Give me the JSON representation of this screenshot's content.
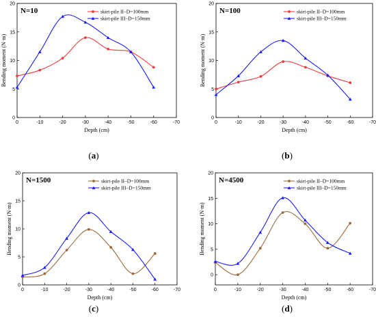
{
  "chart_data": [
    {
      "type": "line",
      "title": "N=10",
      "caption_letter": "a",
      "xlabel": "Depth (cm)",
      "ylabel": "Bending moment (N·m)",
      "xlim": [
        0,
        -70
      ],
      "ylim": [
        0,
        20
      ],
      "xticks": [
        "0",
        "-10",
        "-20",
        "-30",
        "-40",
        "-50",
        "-60",
        "-70"
      ],
      "yticks": [
        "0",
        "5",
        "10",
        "15",
        "20"
      ],
      "grid": false,
      "legend_position": "top-right",
      "colors": [
        "#ef3b3b",
        "#1a1aff"
      ],
      "series": [
        {
          "name": "skirt-pile II–D=100mm",
          "marker": "circle",
          "x": [
            0,
            -10,
            -20,
            -30,
            -40,
            -50,
            -60
          ],
          "values": [
            7.3,
            8.3,
            10.4,
            14.0,
            12.0,
            11.5,
            8.8
          ]
        },
        {
          "name": "skirt-pile III–D=150mm",
          "marker": "triangle",
          "x": [
            0,
            -10,
            -20,
            -30,
            -40,
            -50,
            -60
          ],
          "values": [
            5.3,
            11.5,
            17.7,
            16.7,
            14.0,
            11.5,
            5.3
          ]
        }
      ]
    },
    {
      "type": "line",
      "title": "N=100",
      "caption_letter": "b",
      "xlabel": "Depth (cm)",
      "ylabel": "Bending moment (N·m)",
      "xlim": [
        0,
        -70
      ],
      "ylim": [
        0,
        20
      ],
      "xticks": [
        "0",
        "-10",
        "-20",
        "-30",
        "-40",
        "-50",
        "-60",
        "-70"
      ],
      "yticks": [
        "0",
        "5",
        "10",
        "15",
        "20"
      ],
      "grid": false,
      "legend_position": "top-right",
      "colors": [
        "#ef3b3b",
        "#1a1aff"
      ],
      "series": [
        {
          "name": "skirt-pile II–D=100mm",
          "marker": "circle",
          "x": [
            0,
            -10,
            -20,
            -30,
            -40,
            -50,
            -60
          ],
          "values": [
            5.0,
            6.2,
            7.2,
            9.8,
            8.8,
            7.3,
            6.1
          ]
        },
        {
          "name": "skirt-pile III–D=150mm",
          "marker": "triangle",
          "x": [
            0,
            -10,
            -20,
            -30,
            -40,
            -50,
            -60
          ],
          "values": [
            4.0,
            7.3,
            11.5,
            13.5,
            10.4,
            7.4,
            3.2
          ]
        }
      ]
    },
    {
      "type": "line",
      "title": "N=1500",
      "caption_letter": "c",
      "xlabel": "Depth (cm)",
      "ylabel": "Bending moment (N·m)",
      "xlim": [
        0,
        -70
      ],
      "ylim": [
        0,
        20
      ],
      "xticks": [
        "0",
        "-10",
        "-20",
        "-30",
        "-40",
        "-50",
        "-60",
        "-70"
      ],
      "yticks": [
        "0",
        "5",
        "10",
        "15",
        "20"
      ],
      "grid": false,
      "legend_position": "top-right",
      "colors": [
        "#9c6a3c",
        "#1a1aff"
      ],
      "series": [
        {
          "name": "skirt-pile II–D=100mm",
          "marker": "circle",
          "x": [
            0,
            -10,
            -20,
            -30,
            -40,
            -50,
            -60
          ],
          "values": [
            1.4,
            2.0,
            6.2,
            9.9,
            6.7,
            2.0,
            5.6
          ]
        },
        {
          "name": "skirt-pile III–D=150mm",
          "marker": "triangle",
          "x": [
            0,
            -10,
            -20,
            -30,
            -40,
            -50,
            -60
          ],
          "values": [
            1.7,
            3.1,
            8.3,
            12.9,
            9.5,
            6.3,
            1.0
          ]
        }
      ]
    },
    {
      "type": "line",
      "title": "N=4500",
      "caption_letter": "d",
      "xlabel": "Depth (cm)",
      "ylabel": "Bending moment (N·m)",
      "xlim": [
        0,
        -70
      ],
      "ylim": [
        -2,
        20
      ],
      "xticks": [
        "0",
        "-10",
        "-20",
        "-30",
        "-40",
        "-50",
        "-60",
        "-70"
      ],
      "yticks": [
        "0",
        "5",
        "10",
        "15",
        "20"
      ],
      "grid": false,
      "legend_position": "top-right",
      "colors": [
        "#9c6a3c",
        "#1a1aff"
      ],
      "series": [
        {
          "name": "skirt-pile II–D=100mm",
          "marker": "circle",
          "x": [
            0,
            -10,
            -20,
            -30,
            -40,
            -50,
            -60
          ],
          "values": [
            2.4,
            0.0,
            5.2,
            12.2,
            10.0,
            5.2,
            10.1
          ]
        },
        {
          "name": "skirt-pile III–D=150mm",
          "marker": "triangle",
          "x": [
            0,
            -10,
            -20,
            -30,
            -40,
            -50,
            -60
          ],
          "values": [
            2.6,
            2.2,
            8.3,
            15.1,
            10.7,
            6.3,
            4.2
          ]
        }
      ]
    }
  ]
}
